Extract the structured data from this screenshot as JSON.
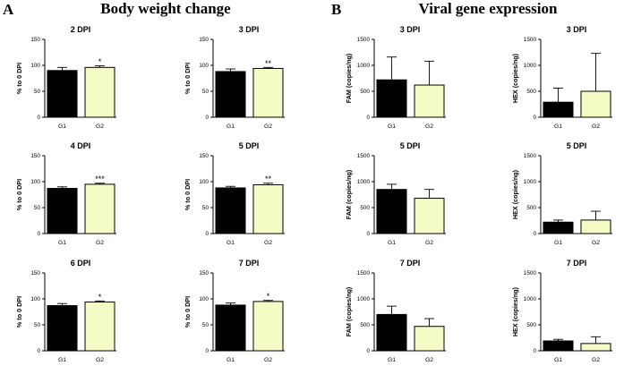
{
  "figure": {
    "panel_a_letter": "A",
    "panel_a_title": "Body weight change",
    "panel_b_letter": "B",
    "panel_b_title": "Viral gene expression"
  },
  "colors": {
    "g1_fill": "#000000",
    "g2_fill": "#f4fbc4",
    "bar_stroke": "#000000",
    "axis": "#000000"
  },
  "chart_data": [
    {
      "type": "bar",
      "title": "2 DPI",
      "ylabel": "% to 0 DPI",
      "ylim": [
        0,
        150
      ],
      "yticks": [
        0,
        50,
        100,
        150
      ],
      "categories": [
        "G1",
        "G2"
      ],
      "values": [
        90,
        96
      ],
      "errors": [
        6,
        3
      ],
      "annotations": [
        "",
        "*"
      ]
    },
    {
      "type": "bar",
      "title": "3 DPI",
      "ylabel": "% to 0 DPI",
      "ylim": [
        0,
        150
      ],
      "yticks": [
        0,
        50,
        100,
        150
      ],
      "categories": [
        "G1",
        "G2"
      ],
      "values": [
        88,
        94
      ],
      "errors": [
        5,
        2
      ],
      "annotations": [
        "",
        "**"
      ]
    },
    {
      "type": "bar",
      "title": "4 DPI",
      "ylabel": "% to 0 DPI",
      "ylim": [
        0,
        150
      ],
      "yticks": [
        0,
        50,
        100,
        150
      ],
      "categories": [
        "G1",
        "G2"
      ],
      "values": [
        87,
        95
      ],
      "errors": [
        3,
        2
      ],
      "annotations": [
        "",
        "***"
      ]
    },
    {
      "type": "bar",
      "title": "5 DPI",
      "ylabel": "% to 0 DPI",
      "ylim": [
        0,
        150
      ],
      "yticks": [
        0,
        50,
        100,
        150
      ],
      "categories": [
        "G1",
        "G2"
      ],
      "values": [
        88,
        94
      ],
      "errors": [
        3,
        3
      ],
      "annotations": [
        "",
        "**"
      ]
    },
    {
      "type": "bar",
      "title": "6 DPI",
      "ylabel": "% to 0 DPI",
      "ylim": [
        0,
        150
      ],
      "yticks": [
        0,
        50,
        100,
        150
      ],
      "categories": [
        "G1",
        "G2"
      ],
      "values": [
        87,
        94
      ],
      "errors": [
        4,
        2
      ],
      "annotations": [
        "",
        "*"
      ]
    },
    {
      "type": "bar",
      "title": "7 DPI",
      "ylabel": "% to 0 DPI",
      "ylim": [
        0,
        150
      ],
      "yticks": [
        0,
        50,
        100,
        150
      ],
      "categories": [
        "G1",
        "G2"
      ],
      "values": [
        88,
        95
      ],
      "errors": [
        4,
        2
      ],
      "annotations": [
        "",
        "*"
      ]
    },
    {
      "type": "bar",
      "title": "3 DPI",
      "ylabel": "FAM (copies/ng)",
      "ylim": [
        0,
        1500
      ],
      "yticks": [
        0,
        500,
        1000,
        1500
      ],
      "categories": [
        "G1",
        "G2"
      ],
      "values": [
        720,
        620
      ],
      "errors": [
        440,
        460
      ],
      "annotations": [
        "",
        ""
      ]
    },
    {
      "type": "bar",
      "title": "3 DPI",
      "ylabel": "HEX (copies/ng)",
      "ylim": [
        0,
        1500
      ],
      "yticks": [
        0,
        500,
        1000,
        1500
      ],
      "categories": [
        "G1",
        "G2"
      ],
      "values": [
        290,
        500
      ],
      "errors": [
        270,
        730
      ],
      "annotations": [
        "",
        ""
      ]
    },
    {
      "type": "bar",
      "title": "5 DPI",
      "ylabel": "FAM (copies/ng)",
      "ylim": [
        0,
        1500
      ],
      "yticks": [
        0,
        500,
        1000,
        1500
      ],
      "categories": [
        "G1",
        "G2"
      ],
      "values": [
        850,
        680
      ],
      "errors": [
        100,
        170
      ],
      "annotations": [
        "",
        ""
      ]
    },
    {
      "type": "bar",
      "title": "5 DPI",
      "ylabel": "HEX (copies/ng)",
      "ylim": [
        0,
        1500
      ],
      "yticks": [
        0,
        500,
        1000,
        1500
      ],
      "categories": [
        "G1",
        "G2"
      ],
      "values": [
        220,
        260
      ],
      "errors": [
        40,
        170
      ],
      "annotations": [
        "",
        ""
      ]
    },
    {
      "type": "bar",
      "title": "7 DPI",
      "ylabel": "FAM (copies/ng)",
      "ylim": [
        0,
        1500
      ],
      "yticks": [
        0,
        500,
        1000,
        1500
      ],
      "categories": [
        "G1",
        "G2"
      ],
      "values": [
        700,
        470
      ],
      "errors": [
        160,
        150
      ],
      "annotations": [
        "",
        ""
      ]
    },
    {
      "type": "bar",
      "title": "7 DPI",
      "ylabel": "HEX (copies/ng)",
      "ylim": [
        0,
        1500
      ],
      "yticks": [
        0,
        500,
        1000,
        1500
      ],
      "categories": [
        "G1",
        "G2"
      ],
      "values": [
        190,
        140
      ],
      "errors": [
        30,
        130
      ],
      "annotations": [
        "",
        ""
      ]
    }
  ]
}
